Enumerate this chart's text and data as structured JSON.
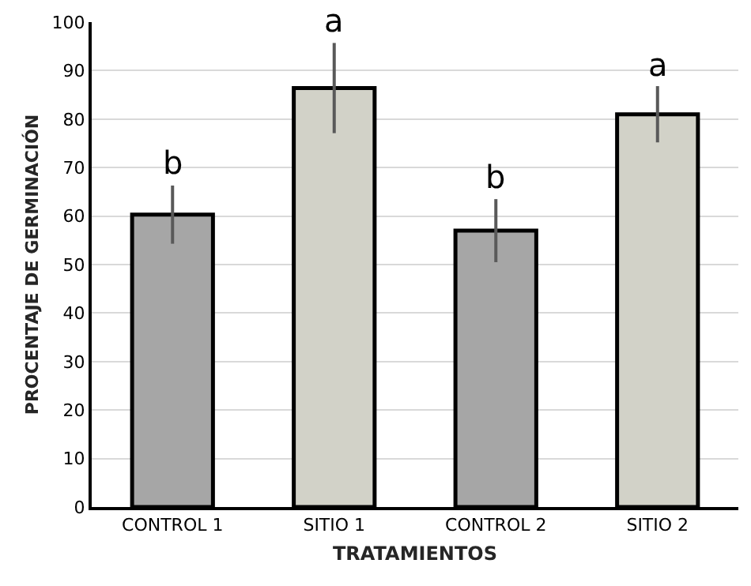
{
  "chart_data": {
    "type": "bar",
    "xlabel": "TRATAMIENTOS",
    "ylabel": "PROCENTAJE DE GERMINACIÓN",
    "categories": [
      "CONTROL 1",
      "SITIO 1",
      "CONTROL 2",
      "SITIO 2"
    ],
    "values": [
      60.3,
      86.4,
      57.0,
      81.0
    ],
    "colors": [
      "#a6a6a6",
      "#d2d2c8",
      "#a6a6a6",
      "#d2d2c8"
    ],
    "errors": [
      6.0,
      9.3,
      6.5,
      5.8
    ],
    "ylim": [
      0,
      100
    ],
    "yticks": [
      0,
      10,
      20,
      30,
      40,
      50,
      60,
      70,
      80,
      90,
      100
    ],
    "grid": "y",
    "annotations": [
      {
        "text": "b",
        "x": "CONTROL 1",
        "y": 66.3
      },
      {
        "text": "a",
        "x": "SITIO 1",
        "y": 95.7
      },
      {
        "text": "b",
        "x": "CONTROL 2",
        "y": 63.5
      },
      {
        "text": "a",
        "x": "SITIO 2",
        "y": 86.8
      }
    ]
  }
}
